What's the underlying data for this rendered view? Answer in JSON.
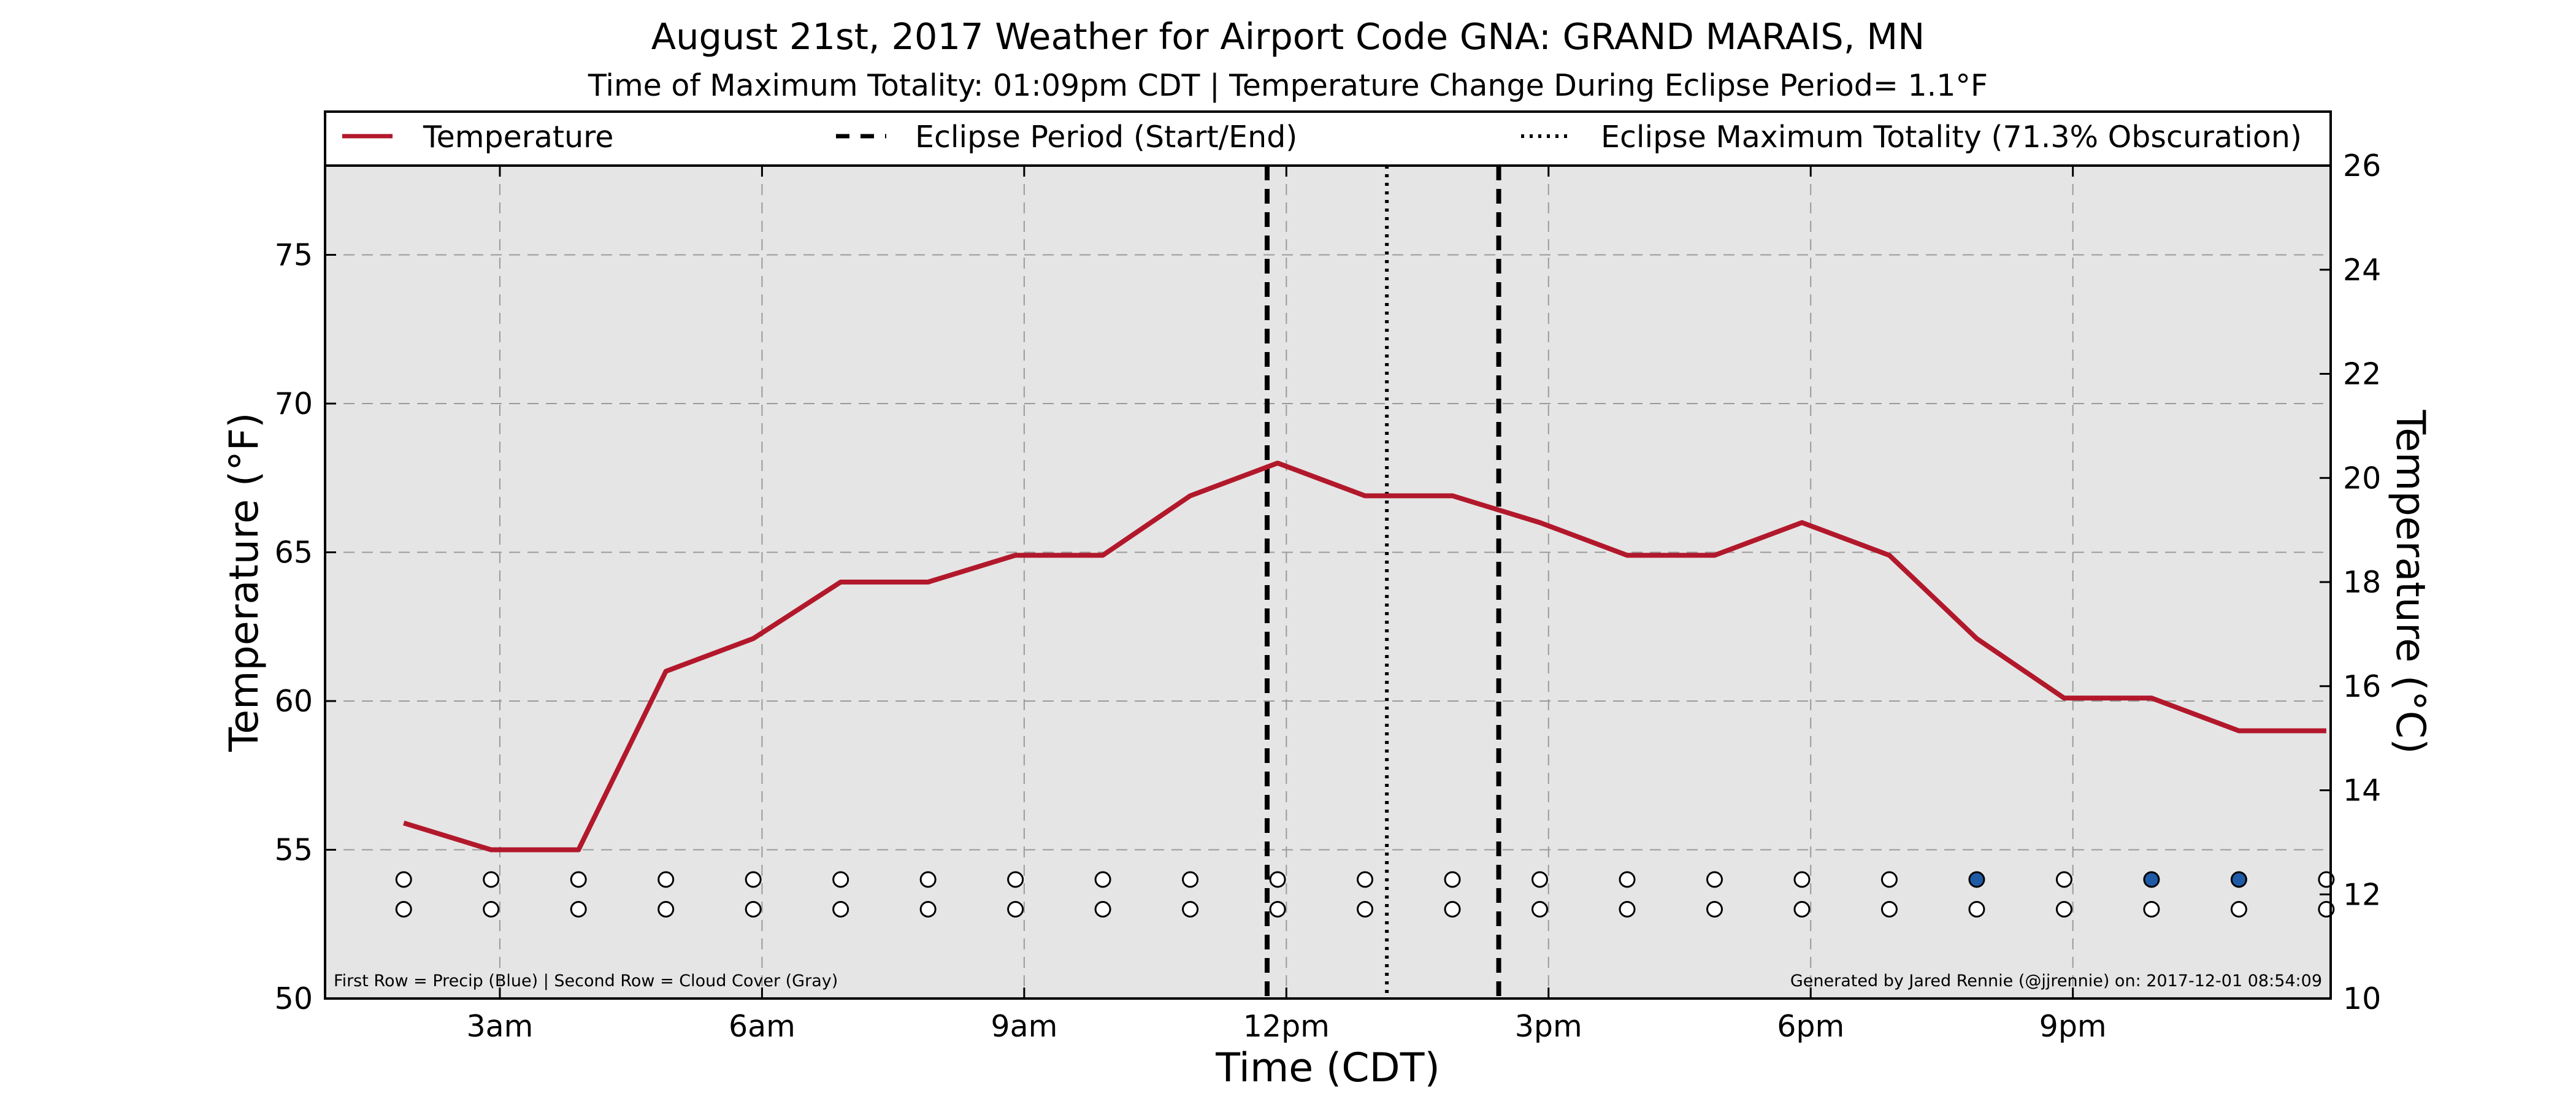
{
  "chart_data": {
    "type": "line",
    "title": "August 21st, 2017 Weather for Airport Code GNA: GRAND MARAIS, MN",
    "subtitle": "Time of Maximum Totality: 01:09pm CDT | Temperature Change During Eclipse Period= 1.1°F",
    "xlabel": "Time (CDT)",
    "ylabel_left": "Temperature (°F)",
    "ylabel_right": "Temperature (°C)",
    "xlim": [
      1.0,
      23.95
    ],
    "ylim_left": [
      50,
      78
    ],
    "ylim_right": [
      10,
      26
    ],
    "x_ticks": [
      {
        "x": 3,
        "label": "3am"
      },
      {
        "x": 6,
        "label": "6am"
      },
      {
        "x": 9,
        "label": "9am"
      },
      {
        "x": 12,
        "label": "12pm"
      },
      {
        "x": 15,
        "label": "3pm"
      },
      {
        "x": 18,
        "label": "6pm"
      },
      {
        "x": 21,
        "label": "9pm"
      }
    ],
    "y_ticks_left": [
      {
        "v": 50,
        "label": "50"
      },
      {
        "v": 55,
        "label": "55"
      },
      {
        "v": 60,
        "label": "60"
      },
      {
        "v": 65,
        "label": "65"
      },
      {
        "v": 70,
        "label": "70"
      },
      {
        "v": 75,
        "label": "75"
      }
    ],
    "y_ticks_right": [
      {
        "v": 10,
        "label": "10"
      },
      {
        "v": 12,
        "label": "12"
      },
      {
        "v": 14,
        "label": "14"
      },
      {
        "v": 16,
        "label": "16"
      },
      {
        "v": 18,
        "label": "18"
      },
      {
        "v": 20,
        "label": "20"
      },
      {
        "v": 22,
        "label": "22"
      },
      {
        "v": 24,
        "label": "24"
      },
      {
        "v": 26,
        "label": "26"
      }
    ],
    "grid": true,
    "series": [
      {
        "name": "Temperature",
        "color": "#b2182b",
        "x": [
          1.9,
          2.9,
          3.9,
          4.9,
          5.9,
          6.9,
          7.9,
          8.9,
          9.9,
          10.9,
          11.9,
          12.9,
          13.9,
          14.9,
          15.9,
          16.9,
          17.9,
          18.9,
          19.9,
          20.9,
          21.9,
          22.9,
          23.9
        ],
        "values": [
          55.9,
          55.0,
          55.0,
          61.0,
          62.1,
          64.0,
          64.0,
          64.9,
          64.9,
          66.9,
          68.0,
          66.9,
          66.9,
          66.0,
          64.9,
          64.9,
          66.0,
          64.9,
          62.1,
          60.1,
          60.1,
          59.0,
          59.0
        ]
      }
    ],
    "eclipse_period": {
      "start": 11.78,
      "end": 14.43,
      "label": "Eclipse Period (Start/End)"
    },
    "eclipse_max": {
      "x": 13.15,
      "label": "Eclipse Maximum Totality (71.3% Obscuration)"
    },
    "legend_placement": "top, above plot",
    "markers": {
      "x": [
        1.9,
        2.9,
        3.9,
        4.9,
        5.9,
        6.9,
        7.9,
        8.9,
        9.9,
        10.9,
        11.9,
        12.9,
        13.9,
        14.9,
        15.9,
        16.9,
        17.9,
        18.9,
        19.9,
        20.9,
        21.9,
        22.9,
        23.9
      ],
      "precip": [
        0,
        0,
        0,
        0,
        0,
        0,
        0,
        0,
        0,
        0,
        0,
        0,
        0,
        0,
        0,
        0,
        0,
        0,
        1,
        0,
        1,
        1,
        0
      ],
      "cloud": [
        0,
        0,
        0,
        0,
        0,
        0,
        0,
        0,
        0,
        0,
        0,
        0,
        0,
        0,
        0,
        0,
        0,
        0,
        0,
        0,
        0,
        0,
        0
      ],
      "precip_row_y": 54.0,
      "cloud_row_y": 53.0,
      "precip_color": "#1f5aa6",
      "cloud_color": "#808080",
      "empty_color": "#ffffff"
    },
    "footnote_left": "First Row = Precip (Blue) | Second Row = Cloud Cover (Gray)",
    "footnote_right": "Generated by Jared Rennie (@jjrennie) on: 2017-12-01 08:54:09"
  },
  "colors": {
    "plot_background": "#e5e5e5",
    "grid": "#9a9a9a",
    "line": "#b2182b"
  }
}
